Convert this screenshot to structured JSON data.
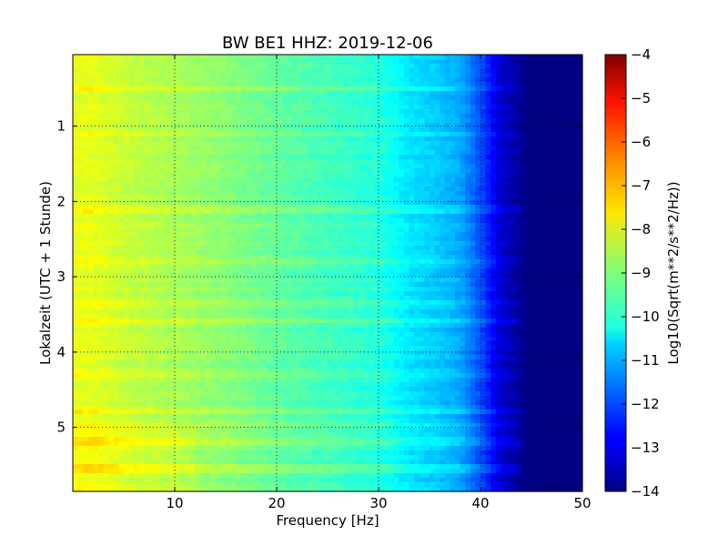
{
  "chart_data": {
    "type": "heatmap",
    "title": "BW BE1 HHZ: 2019-12-06",
    "xlabel": "Frequency [Hz]",
    "ylabel": "Lokalzeit (UTC + 1 Stunde)",
    "colorbar_label": "Log10(Sqrt(m**2/s**2/Hz))",
    "x_range": [
      0,
      50
    ],
    "y_range": [
      0.05,
      5.85
    ],
    "y_inverted": true,
    "x_ticks": [
      10,
      20,
      30,
      40,
      50
    ],
    "x_tick_labels": [
      "10",
      "20",
      "30",
      "40",
      "50"
    ],
    "y_ticks": [
      1,
      2,
      3,
      4,
      5
    ],
    "y_tick_labels": [
      "1",
      "2",
      "3",
      "4",
      "5"
    ],
    "colorbar_range": [
      -14,
      -4
    ],
    "colorbar_ticks": [
      -4,
      -5,
      -6,
      -7,
      -8,
      -9,
      -10,
      -11,
      -12,
      -13,
      -14
    ],
    "colorbar_tick_labels": [
      "−4",
      "−5",
      "−6",
      "−7",
      "−8",
      "−9",
      "−10",
      "−11",
      "−12",
      "−13",
      "−14"
    ],
    "colormap": "jet",
    "grid": true,
    "spectrum_profile": {
      "frequency_hz": [
        0,
        2,
        5,
        10,
        15,
        20,
        25,
        30,
        33,
        36,
        38,
        40,
        42,
        44,
        45,
        50
      ],
      "log10_amplitude": [
        -8.0,
        -8.0,
        -8.3,
        -8.6,
        -8.9,
        -9.3,
        -9.6,
        -9.9,
        -10.5,
        -10.8,
        -11.1,
        -12.0,
        -13.2,
        -13.8,
        -14.0,
        -14.0
      ]
    },
    "high_power_bands_hours": [
      0.5,
      1.1,
      2.1,
      2.8,
      3.35,
      3.6,
      4.3,
      4.78,
      4.98,
      5.18,
      5.55
    ]
  }
}
